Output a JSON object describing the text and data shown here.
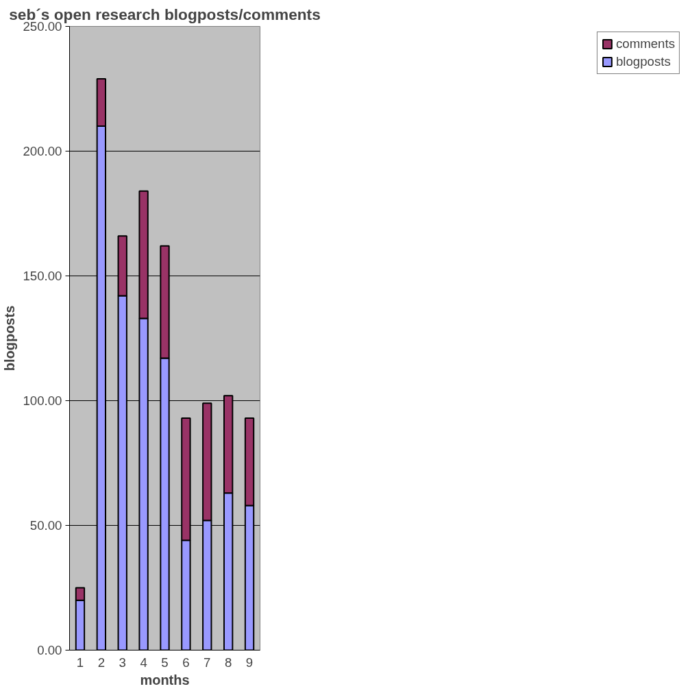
{
  "chart_data": {
    "type": "bar",
    "title": "seb´s open research blogposts/comments",
    "xlabel": "months",
    "ylabel": "blogposts",
    "categories": [
      "1",
      "2",
      "3",
      "4",
      "5",
      "6",
      "7",
      "8",
      "9"
    ],
    "stacked": true,
    "series": [
      {
        "name": "blogposts",
        "color": "#9999ff",
        "values": [
          20,
          210,
          142,
          133,
          117,
          44,
          52,
          63,
          58
        ]
      },
      {
        "name": "comments",
        "color": "#993366",
        "values": [
          5,
          19,
          24,
          51,
          45,
          49,
          47,
          39,
          35
        ]
      }
    ],
    "ylim": [
      0,
      250
    ],
    "yticks": [
      {
        "value": 0,
        "label": "0.00"
      },
      {
        "value": 50,
        "label": "50.00"
      },
      {
        "value": 100,
        "label": "100.00"
      },
      {
        "value": 150,
        "label": "150.00"
      },
      {
        "value": 200,
        "label": "200.00"
      },
      {
        "value": 250,
        "label": "250.00"
      }
    ],
    "grid": "y",
    "legend": "right"
  }
}
